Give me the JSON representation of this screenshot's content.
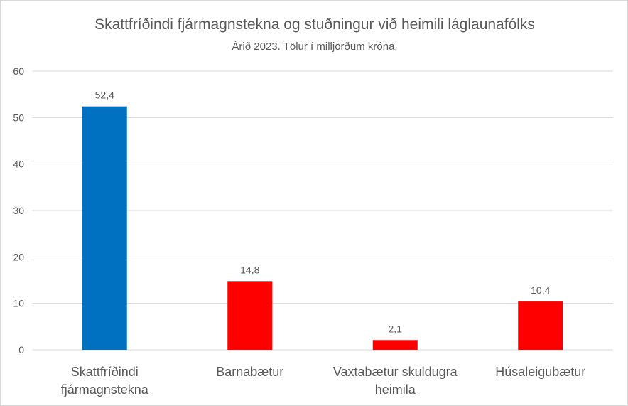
{
  "chart_data": {
    "type": "bar",
    "title": "Skattfríðindi fjármagnstekna og stuðningur við heimili láglaunafólks",
    "subtitle": "Árið 2023. Tölur í milljörðum króna.",
    "categories": [
      [
        "Skattfríðindi",
        "fjármagnstekna"
      ],
      [
        "Barnabætur"
      ],
      [
        "Vaxtabætur skuldugra",
        "heimila"
      ],
      [
        "Húsaleigubætur"
      ]
    ],
    "values": [
      52.4,
      14.8,
      2.1,
      10.4
    ],
    "data_labels": [
      "52,4",
      "14,8",
      "2,1",
      "10,4"
    ],
    "bar_colors": [
      "#0070C0",
      "#FF0000",
      "#FF0000",
      "#FF0000"
    ],
    "ylim": [
      0,
      60
    ],
    "yticks": [
      0,
      10,
      20,
      30,
      40,
      50,
      60
    ],
    "grid": true,
    "xlabel": "",
    "ylabel": ""
  }
}
